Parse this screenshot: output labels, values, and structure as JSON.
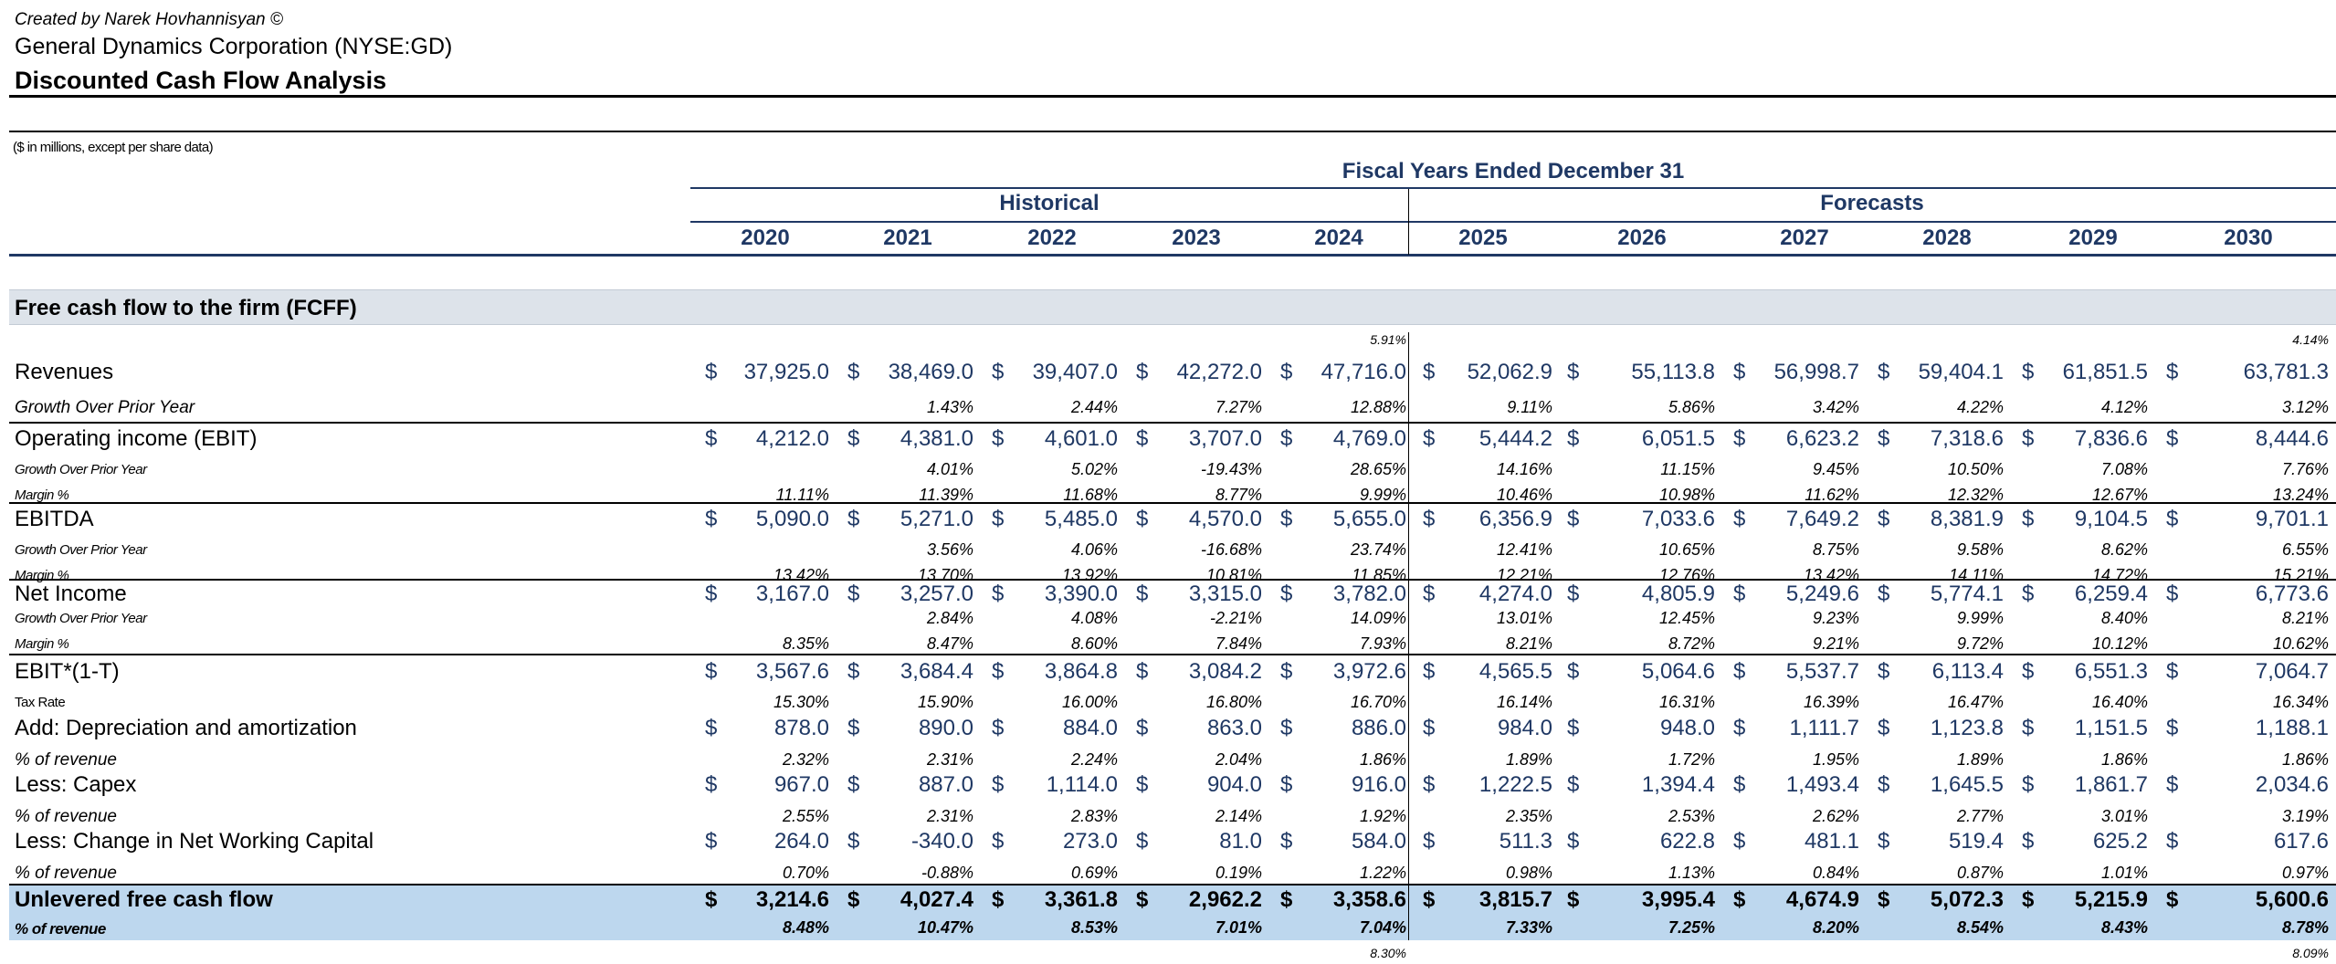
{
  "header": {
    "credit": "Created by Narek Hovhannisyan ©",
    "company": "General Dynamics Corporation (NYSE:GD)",
    "title": "Discounted Cash Flow Analysis",
    "units": "($ in millions, except per share data)"
  },
  "columns": {
    "fiscal_title": "Fiscal Years Ended December 31",
    "historical_label": "Historical",
    "forecasts_label": "Forecasts",
    "years": [
      "2020",
      "2021",
      "2022",
      "2023",
      "2024",
      "2025",
      "2026",
      "2027",
      "2028",
      "2029",
      "2030"
    ]
  },
  "section": {
    "label": "Free cash flow to the firm (FCFF)"
  },
  "notes": {
    "top_2024": "5.91%",
    "top_2030": "4.14%",
    "bottom_2024": "8.30%",
    "bottom_2030": "8.09%"
  },
  "currency_symbol": "$",
  "rows": {
    "revenues": {
      "label": "Revenues",
      "values": [
        "37,925.0",
        "38,469.0",
        "39,407.0",
        "42,272.0",
        "47,716.0",
        "52,062.9",
        "55,113.8",
        "56,998.7",
        "59,404.1",
        "61,851.5",
        "63,781.3"
      ],
      "sub": [
        {
          "label": "Growth Over Prior Year",
          "values": [
            "",
            "1.43%",
            "2.44%",
            "7.27%",
            "12.88%",
            "9.11%",
            "5.86%",
            "3.42%",
            "4.22%",
            "4.12%",
            "3.12%"
          ]
        }
      ]
    },
    "ebit": {
      "label": "Operating income (EBIT)",
      "values": [
        "4,212.0",
        "4,381.0",
        "4,601.0",
        "3,707.0",
        "4,769.0",
        "5,444.2",
        "6,051.5",
        "6,623.2",
        "7,318.6",
        "7,836.6",
        "8,444.6"
      ],
      "sub": [
        {
          "label": "Growth Over Prior Year",
          "values": [
            "",
            "4.01%",
            "5.02%",
            "-19.43%",
            "28.65%",
            "14.16%",
            "11.15%",
            "9.45%",
            "10.50%",
            "7.08%",
            "7.76%"
          ]
        },
        {
          "label": "Margin %",
          "values": [
            "11.11%",
            "11.39%",
            "11.68%",
            "8.77%",
            "9.99%",
            "10.46%",
            "10.98%",
            "11.62%",
            "12.32%",
            "12.67%",
            "13.24%"
          ]
        }
      ]
    },
    "ebitda": {
      "label": "EBITDA",
      "values": [
        "5,090.0",
        "5,271.0",
        "5,485.0",
        "4,570.0",
        "5,655.0",
        "6,356.9",
        "7,033.6",
        "7,649.2",
        "8,381.9",
        "9,104.5",
        "9,701.1"
      ],
      "sub": [
        {
          "label": "Growth Over Prior Year",
          "values": [
            "",
            "3.56%",
            "4.06%",
            "-16.68%",
            "23.74%",
            "12.41%",
            "10.65%",
            "8.75%",
            "9.58%",
            "8.62%",
            "6.55%"
          ]
        },
        {
          "label": "Margin %",
          "values": [
            "13.42%",
            "13.70%",
            "13.92%",
            "10.81%",
            "11.85%",
            "12.21%",
            "12.76%",
            "13.42%",
            "14.11%",
            "14.72%",
            "15.21%"
          ]
        }
      ]
    },
    "net_income": {
      "label": "Net Income",
      "values": [
        "3,167.0",
        "3,257.0",
        "3,390.0",
        "3,315.0",
        "3,782.0",
        "4,274.0",
        "4,805.9",
        "5,249.6",
        "5,774.1",
        "6,259.4",
        "6,773.6"
      ],
      "sub": [
        {
          "label": "Growth Over Prior Year",
          "values": [
            "",
            "2.84%",
            "4.08%",
            "-2.21%",
            "14.09%",
            "13.01%",
            "12.45%",
            "9.23%",
            "9.99%",
            "8.40%",
            "8.21%"
          ]
        },
        {
          "label": "Margin %",
          "values": [
            "8.35%",
            "8.47%",
            "8.60%",
            "7.84%",
            "7.93%",
            "8.21%",
            "8.72%",
            "9.21%",
            "9.72%",
            "10.12%",
            "10.62%"
          ]
        }
      ]
    },
    "nopat": {
      "label": "EBIT*(1-T)",
      "values": [
        "3,567.6",
        "3,684.4",
        "3,864.8",
        "3,084.2",
        "3,972.6",
        "4,565.5",
        "5,064.6",
        "5,537.7",
        "6,113.4",
        "6,551.3",
        "7,064.7"
      ],
      "sub": [
        {
          "label": "Tax Rate",
          "values": [
            "15.30%",
            "15.90%",
            "16.00%",
            "16.80%",
            "16.70%",
            "16.14%",
            "16.31%",
            "16.39%",
            "16.47%",
            "16.40%",
            "16.34%"
          ]
        }
      ]
    },
    "da": {
      "label": "Add: Depreciation and amortization",
      "values": [
        "878.0",
        "890.0",
        "884.0",
        "863.0",
        "886.0",
        "984.0",
        "948.0",
        "1,111.7",
        "1,123.8",
        "1,151.5",
        "1,188.1"
      ],
      "sub": [
        {
          "label": "% of revenue",
          "values": [
            "2.32%",
            "2.31%",
            "2.24%",
            "2.04%",
            "1.86%",
            "1.89%",
            "1.72%",
            "1.95%",
            "1.89%",
            "1.86%",
            "1.86%"
          ]
        }
      ]
    },
    "capex": {
      "label": "Less: Capex",
      "values": [
        "967.0",
        "887.0",
        "1,114.0",
        "904.0",
        "916.0",
        "1,222.5",
        "1,394.4",
        "1,493.4",
        "1,645.5",
        "1,861.7",
        "2,034.6"
      ],
      "sub": [
        {
          "label": "% of revenue",
          "values": [
            "2.55%",
            "2.31%",
            "2.83%",
            "2.14%",
            "1.92%",
            "2.35%",
            "2.53%",
            "2.62%",
            "2.77%",
            "3.01%",
            "3.19%"
          ]
        }
      ]
    },
    "nwc": {
      "label": "Less: Change in Net Working Capital",
      "values": [
        "264.0",
        "-340.0",
        "273.0",
        "81.0",
        "584.0",
        "511.3",
        "622.8",
        "481.1",
        "519.4",
        "625.2",
        "617.6"
      ],
      "sub": [
        {
          "label": "% of revenue",
          "values": [
            "0.70%",
            "-0.88%",
            "0.69%",
            "0.19%",
            "1.22%",
            "0.98%",
            "1.13%",
            "0.84%",
            "0.87%",
            "1.01%",
            "0.97%"
          ]
        }
      ]
    },
    "ufcf": {
      "label": "Unlevered free cash flow",
      "values": [
        "3,214.6",
        "4,027.4",
        "3,361.8",
        "2,962.2",
        "3,358.6",
        "3,815.7",
        "3,995.4",
        "4,674.9",
        "5,072.3",
        "5,215.9",
        "5,600.6"
      ],
      "sub": [
        {
          "label": "% of revenue",
          "values": [
            "8.48%",
            "10.47%",
            "8.53%",
            "7.01%",
            "7.04%",
            "7.33%",
            "7.25%",
            "8.20%",
            "8.54%",
            "8.43%",
            "8.78%"
          ]
        }
      ]
    }
  }
}
